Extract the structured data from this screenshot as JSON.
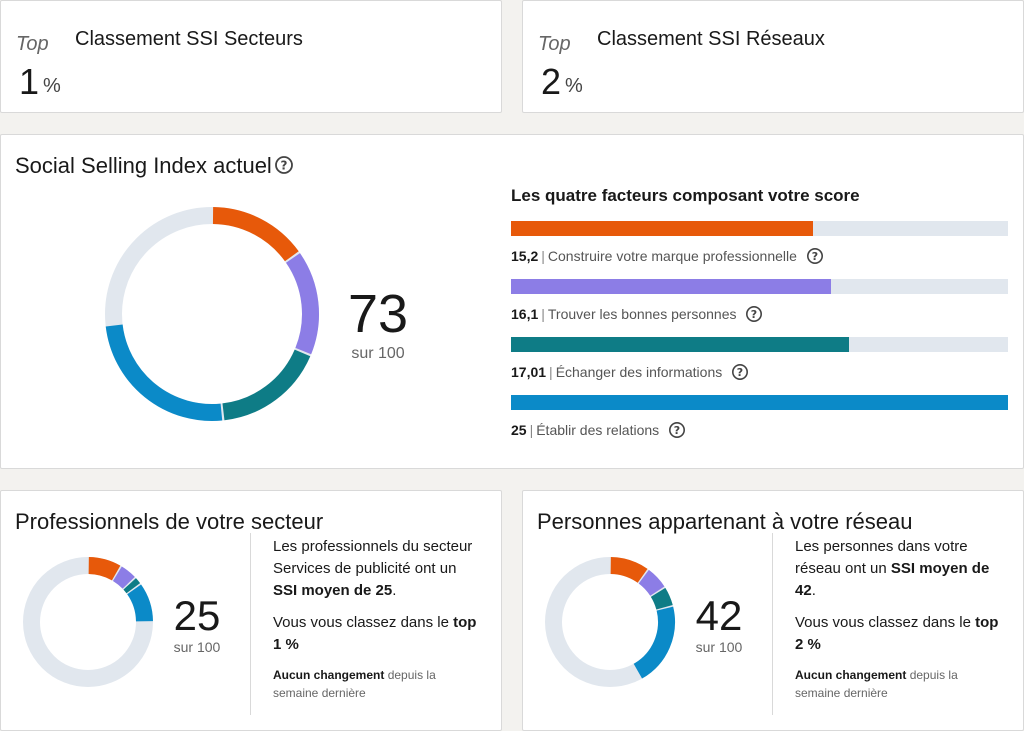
{
  "sector_rank": {
    "top_label": "Top",
    "title": "Classement SSI Secteurs",
    "value": "1",
    "unit": "%"
  },
  "network_rank": {
    "top_label": "Top",
    "title": "Classement SSI Réseaux",
    "value": "2",
    "unit": "%"
  },
  "ssi": {
    "title": "Social Selling Index actuel",
    "score": "73",
    "score_sub": "sur 100",
    "factors_title": "Les quatre facteurs composant votre score",
    "factors": [
      {
        "value": "15,2",
        "label": "Construire votre marque professionnelle",
        "score": 15.2,
        "max": 25,
        "color": "#e7590a"
      },
      {
        "value": "16,1",
        "label": "Trouver les bonnes personnes",
        "score": 16.1,
        "max": 25,
        "color": "#8c7de6"
      },
      {
        "value": "17,01",
        "label": "Échanger des informations",
        "score": 17.01,
        "max": 25,
        "color": "#0e7c86"
      },
      {
        "value": "25",
        "label": "Établir des relations",
        "score": 25,
        "max": 25,
        "color": "#0b8ac8"
      }
    ]
  },
  "sector": {
    "title": "Professionnels de votre secteur",
    "score": "25",
    "score_sub": "sur 100",
    "donut_values": [
      8.5,
      4.5,
      2.0,
      10.0
    ],
    "desc_1": "Les professionnels du secteur",
    "desc_2": "Services de publicité ont un",
    "desc_bold": "SSI moyen de 25",
    "desc_end": ".",
    "rank_pre": "Vous vous classez dans le",
    "rank_bold_1": "top",
    "rank_bold_2": "1 %",
    "note_bold": "Aucun changement",
    "note_1": "depuis la",
    "note_2": "semaine dernière"
  },
  "network": {
    "title": "Personnes appartenant à votre réseau",
    "score": "42",
    "score_sub": "sur 100",
    "donut_values": [
      10.0,
      6.0,
      5.0,
      21.0
    ],
    "desc_1": "Les personnes dans votre",
    "desc_2": "réseau ont un",
    "desc_bold_1": "SSI moyen de",
    "desc_bold_2": "42",
    "desc_end": ".",
    "rank_pre": "Vous vous classez dans le",
    "rank_bold_1": "top",
    "rank_bold_2": "2 %",
    "note_bold": "Aucun changement",
    "note_1": "depuis la",
    "note_2": "semaine dernière"
  },
  "colors": {
    "track": "#e1e7ee",
    "orange": "#e7590a",
    "purple": "#8c7de6",
    "teal": "#0e7c86",
    "blue": "#0b8ac8"
  },
  "icons": {
    "help": "question-circle-icon"
  }
}
